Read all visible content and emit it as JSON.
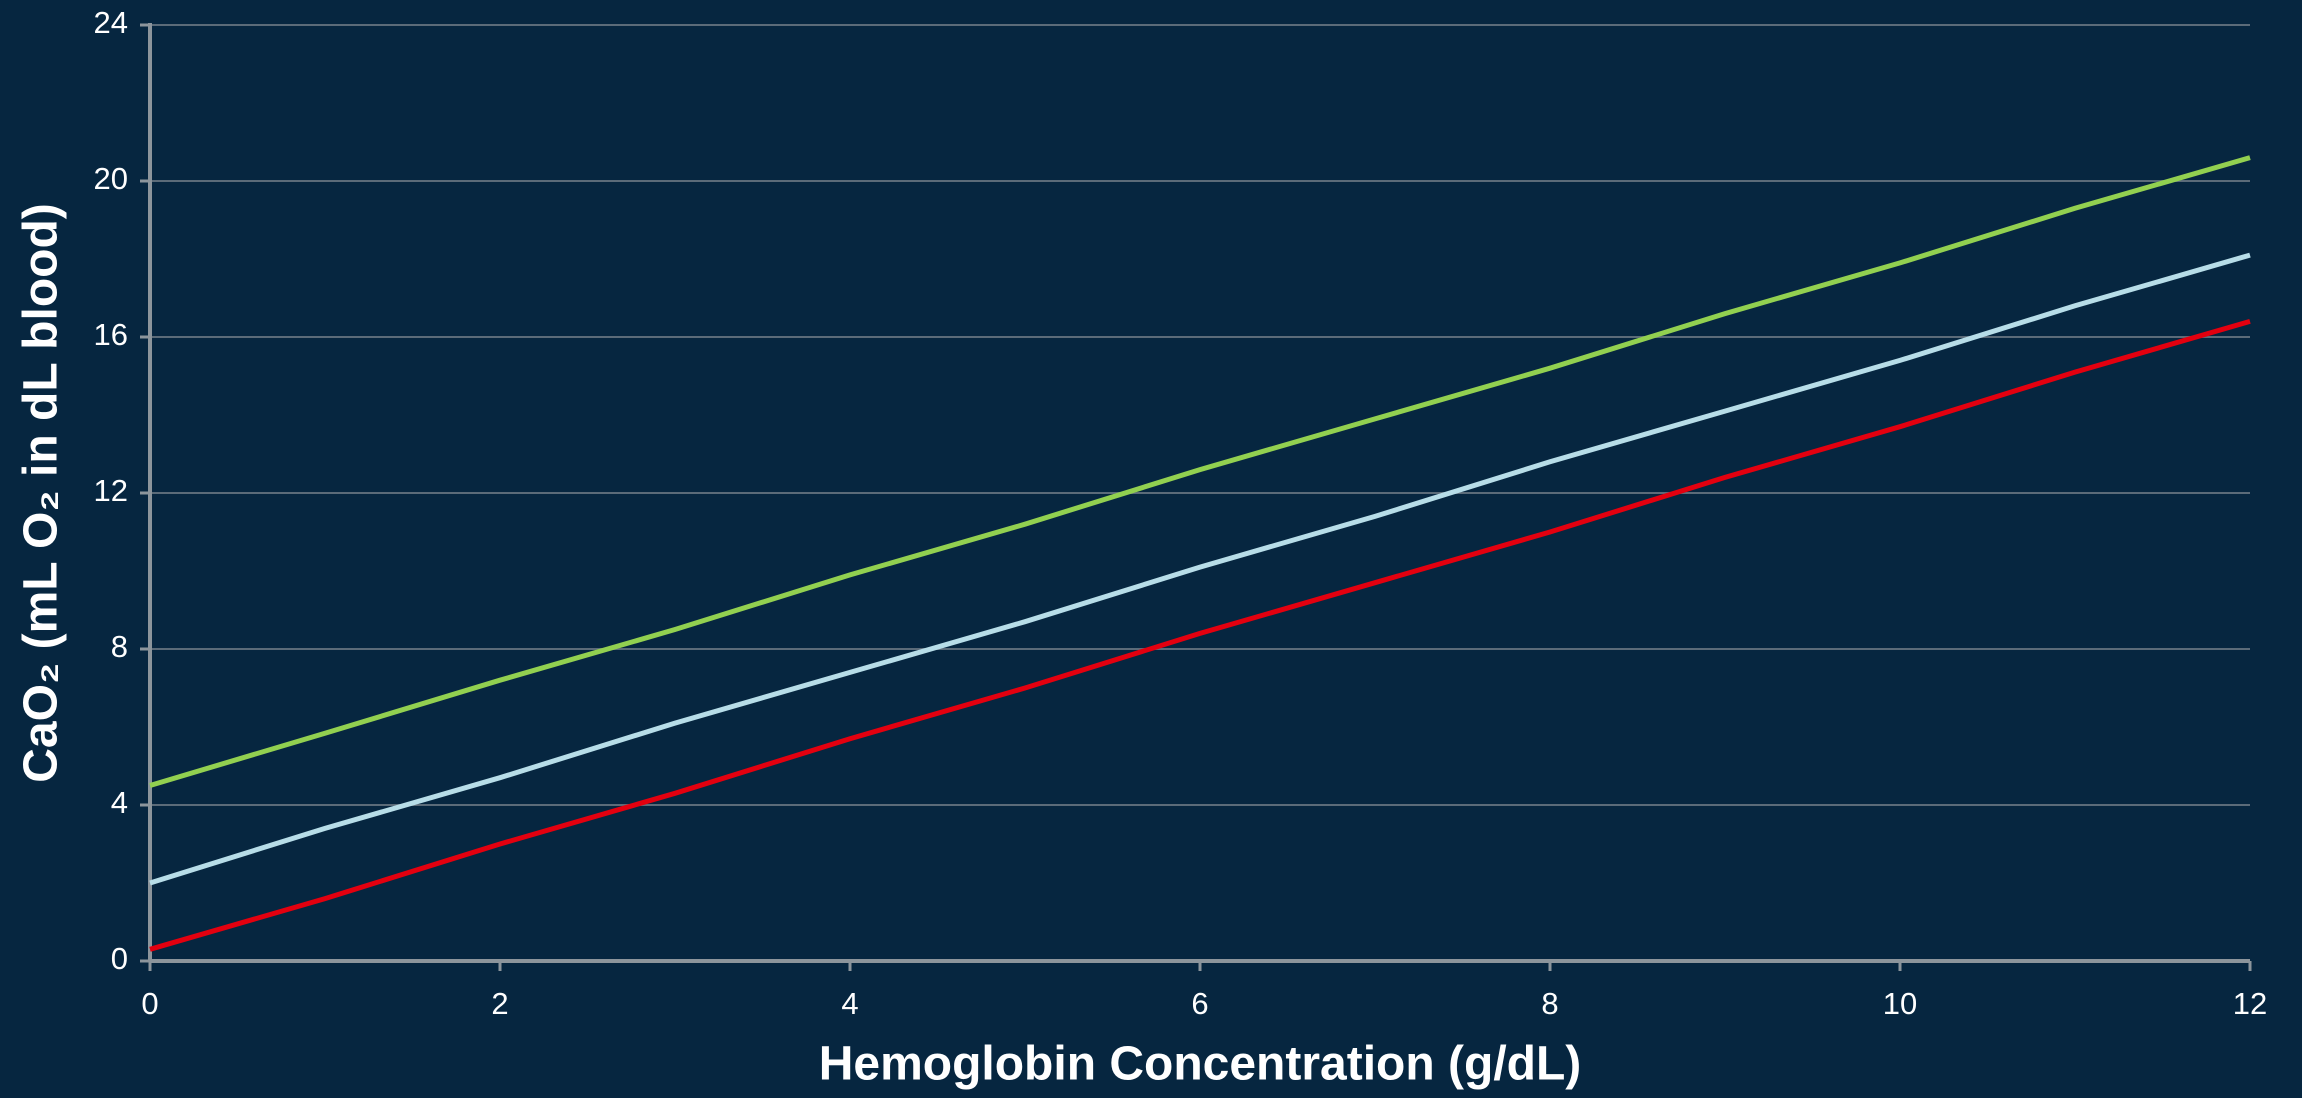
{
  "chart_data": {
    "type": "line",
    "x_label": "Hemoglobin Concentration (g/dL)",
    "y_label": "CaO₂ (mL O₂ in dL blood)",
    "x": [
      0,
      1,
      2,
      3,
      4,
      5,
      6,
      7,
      8,
      9,
      10,
      11,
      12
    ],
    "series": [
      {
        "color": "#92d050",
        "values": [
          4.5,
          5.84,
          7.2,
          8.5,
          9.9,
          11.2,
          12.6,
          13.9,
          15.2,
          16.6,
          17.9,
          19.3,
          20.6
        ]
      },
      {
        "color": "#b7dde8",
        "values": [
          2.0,
          3.4,
          4.7,
          6.1,
          7.4,
          8.7,
          10.1,
          11.4,
          12.8,
          14.1,
          15.4,
          16.8,
          18.1
        ]
      },
      {
        "color": "#e3000f",
        "values": [
          0.3,
          1.6,
          3.0,
          4.3,
          5.7,
          7.0,
          8.4,
          9.7,
          11.0,
          12.4,
          13.7,
          15.1,
          16.4
        ]
      }
    ],
    "xlim": [
      0,
      12
    ],
    "xticks": [
      0,
      2,
      4,
      6,
      8,
      10,
      12
    ],
    "ylim": [
      0,
      24
    ],
    "yticks": [
      0,
      4,
      8,
      12,
      16,
      20,
      24
    ],
    "grid": true
  }
}
